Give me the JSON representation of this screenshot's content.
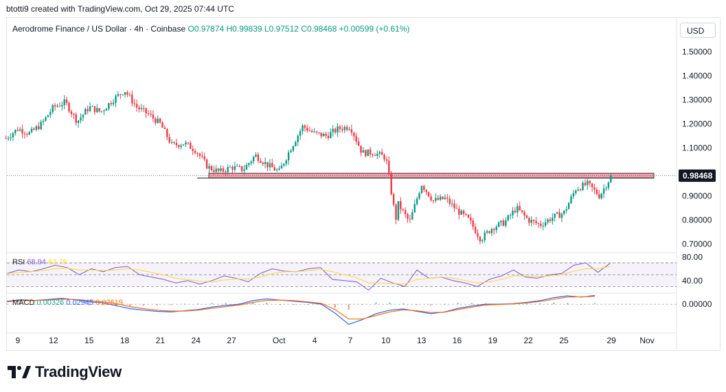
{
  "caption": "btotti9 created with TradingView.com, Oct 29, 2025 07:44 UTC",
  "legend": {
    "symbol": "Aerodrome Finance / US Dollar · 4h · Coinbase",
    "ohlc": "O0.97874 H0.99839 L0.97512 C0.98468 +0.00599 (+0.61%)"
  },
  "currency_button": "USD",
  "rsi_legend": {
    "name": "RSI",
    "value": "68.94",
    "ma": "63.78"
  },
  "macd_legend": {
    "name": "MACD",
    "hist": "0.00326",
    "macd": "0.02945",
    "signal": "0.02619"
  },
  "brand": "TradingView",
  "colors": {
    "up": "#089981",
    "down": "#f23645",
    "rsi": "#7e57c2",
    "rsi_ma": "#fdd835",
    "macd": "#2962ff",
    "signal": "#ff6d00",
    "zone": "#f7a1ad"
  },
  "chart_data": [
    {
      "type": "candlestick",
      "title": "Aerodrome Finance / US Dollar · 4h · Coinbase",
      "x_ticks": [
        "9",
        "12",
        "15",
        "18",
        "21",
        "24",
        "27",
        "Oct",
        "4",
        "7",
        "10",
        "13",
        "16",
        "19",
        "22",
        "25",
        "29",
        "Nov"
      ],
      "x_tick_dates": [
        "2025-09-09",
        "2025-09-12",
        "2025-09-15",
        "2025-09-18",
        "2025-09-21",
        "2025-09-24",
        "2025-09-27",
        "2025-10-01",
        "2025-10-04",
        "2025-10-07",
        "2025-10-10",
        "2025-10-13",
        "2025-10-16",
        "2025-10-19",
        "2025-10-22",
        "2025-10-25",
        "2025-10-29",
        "2025-11-01"
      ],
      "y_ticks": [
        "1.50000",
        "1.40000",
        "1.30000",
        "1.20000",
        "1.10000",
        "0.90000",
        "0.80000",
        "0.70000"
      ],
      "ylim": [
        0.67,
        1.55
      ],
      "last_price_label": "0.98468",
      "resistance_zone": [
        0.975,
        0.995
      ],
      "close_path": [
        {
          "date": "2025-09-08",
          "close": 1.14
        },
        {
          "date": "2025-09-09",
          "close": 1.18
        },
        {
          "date": "2025-09-10",
          "close": 1.16
        },
        {
          "date": "2025-09-11",
          "close": 1.2
        },
        {
          "date": "2025-09-12",
          "close": 1.27
        },
        {
          "date": "2025-09-13",
          "close": 1.29
        },
        {
          "date": "2025-09-14",
          "close": 1.21
        },
        {
          "date": "2025-09-15",
          "close": 1.27
        },
        {
          "date": "2025-09-16",
          "close": 1.25
        },
        {
          "date": "2025-09-17",
          "close": 1.3
        },
        {
          "date": "2025-09-18",
          "close": 1.34
        },
        {
          "date": "2025-09-19",
          "close": 1.27
        },
        {
          "date": "2025-09-20",
          "close": 1.24
        },
        {
          "date": "2025-09-21",
          "close": 1.2
        },
        {
          "date": "2025-09-22",
          "close": 1.11
        },
        {
          "date": "2025-09-23",
          "close": 1.12
        },
        {
          "date": "2025-09-24",
          "close": 1.09
        },
        {
          "date": "2025-09-25",
          "close": 1.02
        },
        {
          "date": "2025-09-26",
          "close": 1.0
        },
        {
          "date": "2025-09-27",
          "close": 1.02
        },
        {
          "date": "2025-09-28",
          "close": 1.01
        },
        {
          "date": "2025-09-29",
          "close": 1.07
        },
        {
          "date": "2025-09-30",
          "close": 1.03
        },
        {
          "date": "2025-10-01",
          "close": 1.0
        },
        {
          "date": "2025-10-02",
          "close": 1.1
        },
        {
          "date": "2025-10-03",
          "close": 1.19
        },
        {
          "date": "2025-10-04",
          "close": 1.16
        },
        {
          "date": "2025-10-05",
          "close": 1.15
        },
        {
          "date": "2025-10-06",
          "close": 1.18
        },
        {
          "date": "2025-10-07",
          "close": 1.19
        },
        {
          "date": "2025-10-08",
          "close": 1.08
        },
        {
          "date": "2025-10-09",
          "close": 1.08
        },
        {
          "date": "2025-10-10",
          "close": 1.06
        },
        {
          "date": "2025-10-10T20:00",
          "close": 0.8
        },
        {
          "date": "2025-10-11",
          "close": 0.87
        },
        {
          "date": "2025-10-12",
          "close": 0.79
        },
        {
          "date": "2025-10-13",
          "close": 0.95
        },
        {
          "date": "2025-10-14",
          "close": 0.88
        },
        {
          "date": "2025-10-15",
          "close": 0.89
        },
        {
          "date": "2025-10-16",
          "close": 0.84
        },
        {
          "date": "2025-10-17",
          "close": 0.8
        },
        {
          "date": "2025-10-18",
          "close": 0.72
        },
        {
          "date": "2025-10-19",
          "close": 0.77
        },
        {
          "date": "2025-10-20",
          "close": 0.79
        },
        {
          "date": "2025-10-21",
          "close": 0.85
        },
        {
          "date": "2025-10-22",
          "close": 0.8
        },
        {
          "date": "2025-10-23",
          "close": 0.78
        },
        {
          "date": "2025-10-24",
          "close": 0.81
        },
        {
          "date": "2025-10-25",
          "close": 0.83
        },
        {
          "date": "2025-10-26",
          "close": 0.93
        },
        {
          "date": "2025-10-27",
          "close": 0.95
        },
        {
          "date": "2025-10-28",
          "close": 0.9
        },
        {
          "date": "2025-10-29",
          "close": 0.98468
        }
      ]
    },
    {
      "type": "line",
      "title": "RSI",
      "y_ticks": [
        "80.00",
        "40.00"
      ],
      "ylim": [
        20,
        85
      ],
      "bands": [
        70,
        50,
        30
      ],
      "series": [
        {
          "name": "RSI",
          "values": [
            52,
            58,
            55,
            60,
            66,
            62,
            50,
            60,
            55,
            62,
            64,
            50,
            46,
            42,
            36,
            40,
            34,
            40,
            48,
            44,
            38,
            52,
            60,
            56,
            55,
            60,
            62,
            42,
            40,
            38,
            24,
            44,
            36,
            30,
            58,
            44,
            46,
            40,
            36,
            30,
            42,
            48,
            58,
            46,
            44,
            50,
            52,
            66,
            70,
            54,
            68.94
          ]
        },
        {
          "name": "MA",
          "values": [
            52,
            54,
            55,
            57,
            60,
            61,
            58,
            58,
            57,
            58,
            60,
            58,
            54,
            50,
            44,
            42,
            39,
            38,
            41,
            43,
            43,
            46,
            52,
            55,
            55,
            57,
            59,
            55,
            50,
            45,
            36,
            36,
            35,
            34,
            42,
            44,
            46,
            44,
            40,
            36,
            38,
            42,
            48,
            48,
            47,
            48,
            50,
            56,
            60,
            60,
            63.78
          ]
        }
      ]
    },
    {
      "type": "line",
      "title": "MACD",
      "y_ticks": [
        "0.00000"
      ],
      "ylim": [
        -0.09,
        0.035
      ],
      "series": [
        {
          "name": "MACD",
          "values": [
            0.01,
            0.015,
            0.012,
            0.016,
            0.02,
            0.015,
            0.008,
            0.005,
            -0.005,
            -0.015,
            -0.02,
            -0.024,
            -0.026,
            -0.022,
            -0.018,
            -0.01,
            -0.004,
            0.0,
            0.012,
            0.018,
            0.014,
            0.01,
            0.006,
            0.0,
            -0.03,
            -0.068,
            -0.052,
            -0.032,
            -0.02,
            -0.016,
            -0.024,
            -0.032,
            -0.026,
            -0.014,
            -0.006,
            0.0,
            0.0,
            0.002,
            0.006,
            0.012,
            0.022,
            0.028,
            0.024,
            0.02945
          ]
        },
        {
          "name": "Signal",
          "values": [
            0.008,
            0.012,
            0.012,
            0.014,
            0.017,
            0.016,
            0.012,
            0.008,
            0.002,
            -0.008,
            -0.015,
            -0.02,
            -0.023,
            -0.023,
            -0.02,
            -0.014,
            -0.008,
            -0.003,
            0.006,
            0.013,
            0.014,
            0.012,
            0.008,
            0.003,
            -0.018,
            -0.05,
            -0.05,
            -0.038,
            -0.026,
            -0.019,
            -0.022,
            -0.028,
            -0.027,
            -0.018,
            -0.01,
            -0.003,
            -0.001,
            0.001,
            0.004,
            0.009,
            0.017,
            0.024,
            0.025,
            0.02619
          ]
        },
        {
          "name": "Histogram",
          "values": [
            0.002,
            0.003,
            0.0,
            0.002,
            0.003,
            -0.001,
            -0.004,
            -0.003,
            -0.007,
            -0.007,
            -0.005,
            -0.004,
            -0.003,
            0.001,
            0.002,
            0.004,
            0.004,
            0.003,
            0.006,
            0.005,
            0.0,
            -0.002,
            -0.002,
            -0.003,
            -0.012,
            -0.018,
            -0.002,
            0.006,
            0.006,
            0.003,
            -0.002,
            -0.004,
            0.001,
            0.004,
            0.004,
            0.003,
            0.001,
            0.001,
            0.002,
            0.003,
            0.005,
            0.004,
            -0.001,
            0.00326
          ]
        }
      ]
    }
  ]
}
